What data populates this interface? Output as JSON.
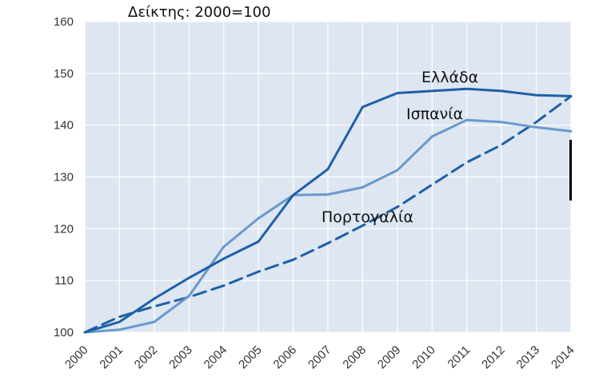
{
  "chart_data": {
    "type": "line",
    "title": "Δείκτης: 2000=100",
    "xlabel": "",
    "ylabel": "",
    "x": [
      "2000",
      "2001",
      "2002",
      "2003",
      "2004",
      "2005",
      "2006",
      "2007",
      "2008",
      "2009",
      "2010",
      "2011",
      "2012",
      "2013",
      "2014"
    ],
    "ylim": [
      100,
      160
    ],
    "yticks": [
      "100",
      "110",
      "120",
      "130",
      "140",
      "150",
      "160"
    ],
    "grid": true,
    "series": [
      {
        "name": "Ελλάδα",
        "color": "#1f5fa6",
        "style": "solid",
        "values": [
          100,
          102.0,
          106.5,
          110.5,
          114.2,
          117.5,
          126.5,
          131.5,
          143.5,
          146.2,
          146.6,
          147.0,
          146.6,
          145.8,
          145.6
        ]
      },
      {
        "name": "Ισπανία",
        "color": "#6a98cc",
        "style": "solid",
        "values": [
          100,
          100.5,
          102.0,
          107.0,
          116.5,
          122.0,
          126.5,
          126.6,
          128.0,
          131.3,
          137.8,
          141.0,
          140.6,
          139.6,
          138.8
        ]
      },
      {
        "name": "Πορτογαλία",
        "color": "#1f5fa6",
        "style": "dashed",
        "values": [
          100,
          103.0,
          105.0,
          106.8,
          109.0,
          111.7,
          114.0,
          117.2,
          120.6,
          124.2,
          128.5,
          132.8,
          136.2,
          140.6,
          145.6
        ]
      }
    ]
  }
}
